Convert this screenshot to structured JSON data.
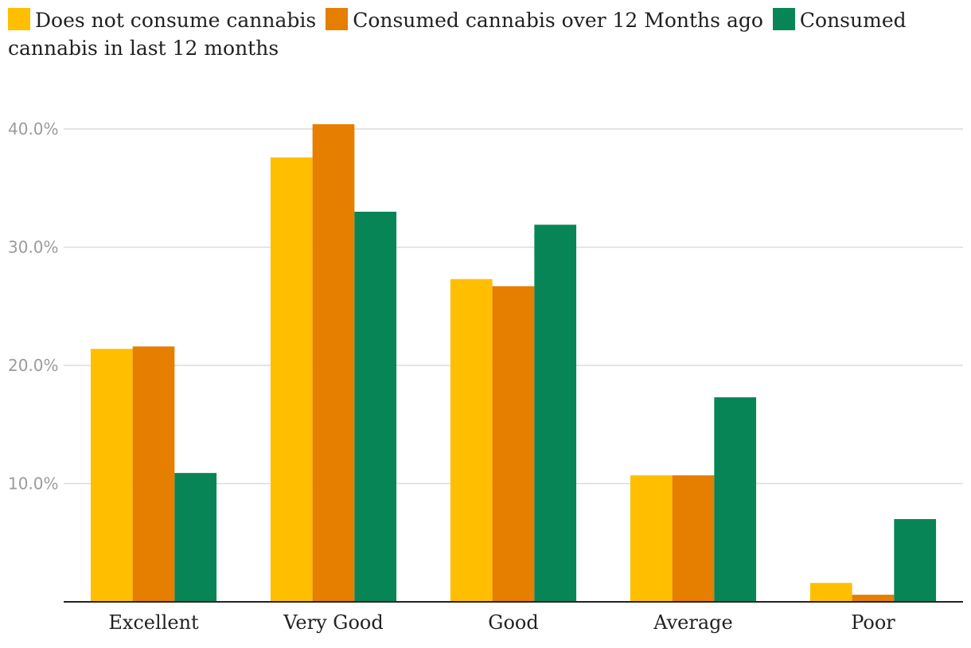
{
  "chart_data": {
    "type": "bar",
    "title": "",
    "xlabel": "",
    "ylabel": "",
    "categories": [
      "Excellent",
      "Very Good",
      "Good",
      "Average",
      "Poor"
    ],
    "series": [
      {
        "name": "Does not consume cannabis",
        "color": "#FFBE00",
        "values": [
          21.4,
          37.6,
          27.3,
          10.7,
          1.6
        ]
      },
      {
        "name": "Consumed cannabis over 12 Months ago",
        "color": "#E67E00",
        "values": [
          21.6,
          40.4,
          26.7,
          10.7,
          0.6
        ]
      },
      {
        "name": "Consumed cannabis in last 12 months",
        "color": "#088556",
        "values": [
          10.9,
          33.0,
          31.9,
          17.3,
          7.0
        ]
      }
    ],
    "y_ticks": [
      "10.0%",
      "20.0%",
      "30.0%",
      "40.0%"
    ],
    "y_tick_values": [
      10,
      20,
      30,
      40
    ],
    "ylim": [
      0,
      44
    ],
    "grid": true,
    "legend_position": "top"
  }
}
